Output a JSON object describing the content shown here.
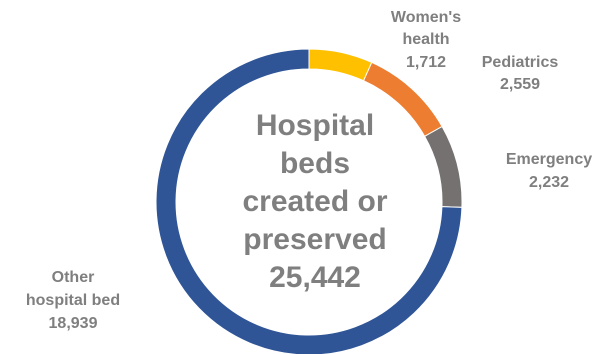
{
  "chart_data": {
    "type": "pie",
    "title": "",
    "center_text": [
      "Hospital",
      "beds",
      "created or",
      "preserved",
      "25,442"
    ],
    "categories": [
      "Women's health",
      "Pediatrics",
      "Emergency",
      "Other hospital bed"
    ],
    "values": [
      1712,
      2559,
      2232,
      18939
    ],
    "value_labels": [
      "1,712",
      "2,559",
      "2,232",
      "18,939"
    ],
    "category_label_lines": [
      [
        "Women's",
        "health"
      ],
      [
        "Pediatrics"
      ],
      [
        "Emergency"
      ],
      [
        "Other",
        "hospital bed"
      ]
    ],
    "colors": [
      "#FFC000",
      "#ED7D31",
      "#767171",
      "#2F5597"
    ],
    "style": "donut",
    "legend": "none"
  }
}
